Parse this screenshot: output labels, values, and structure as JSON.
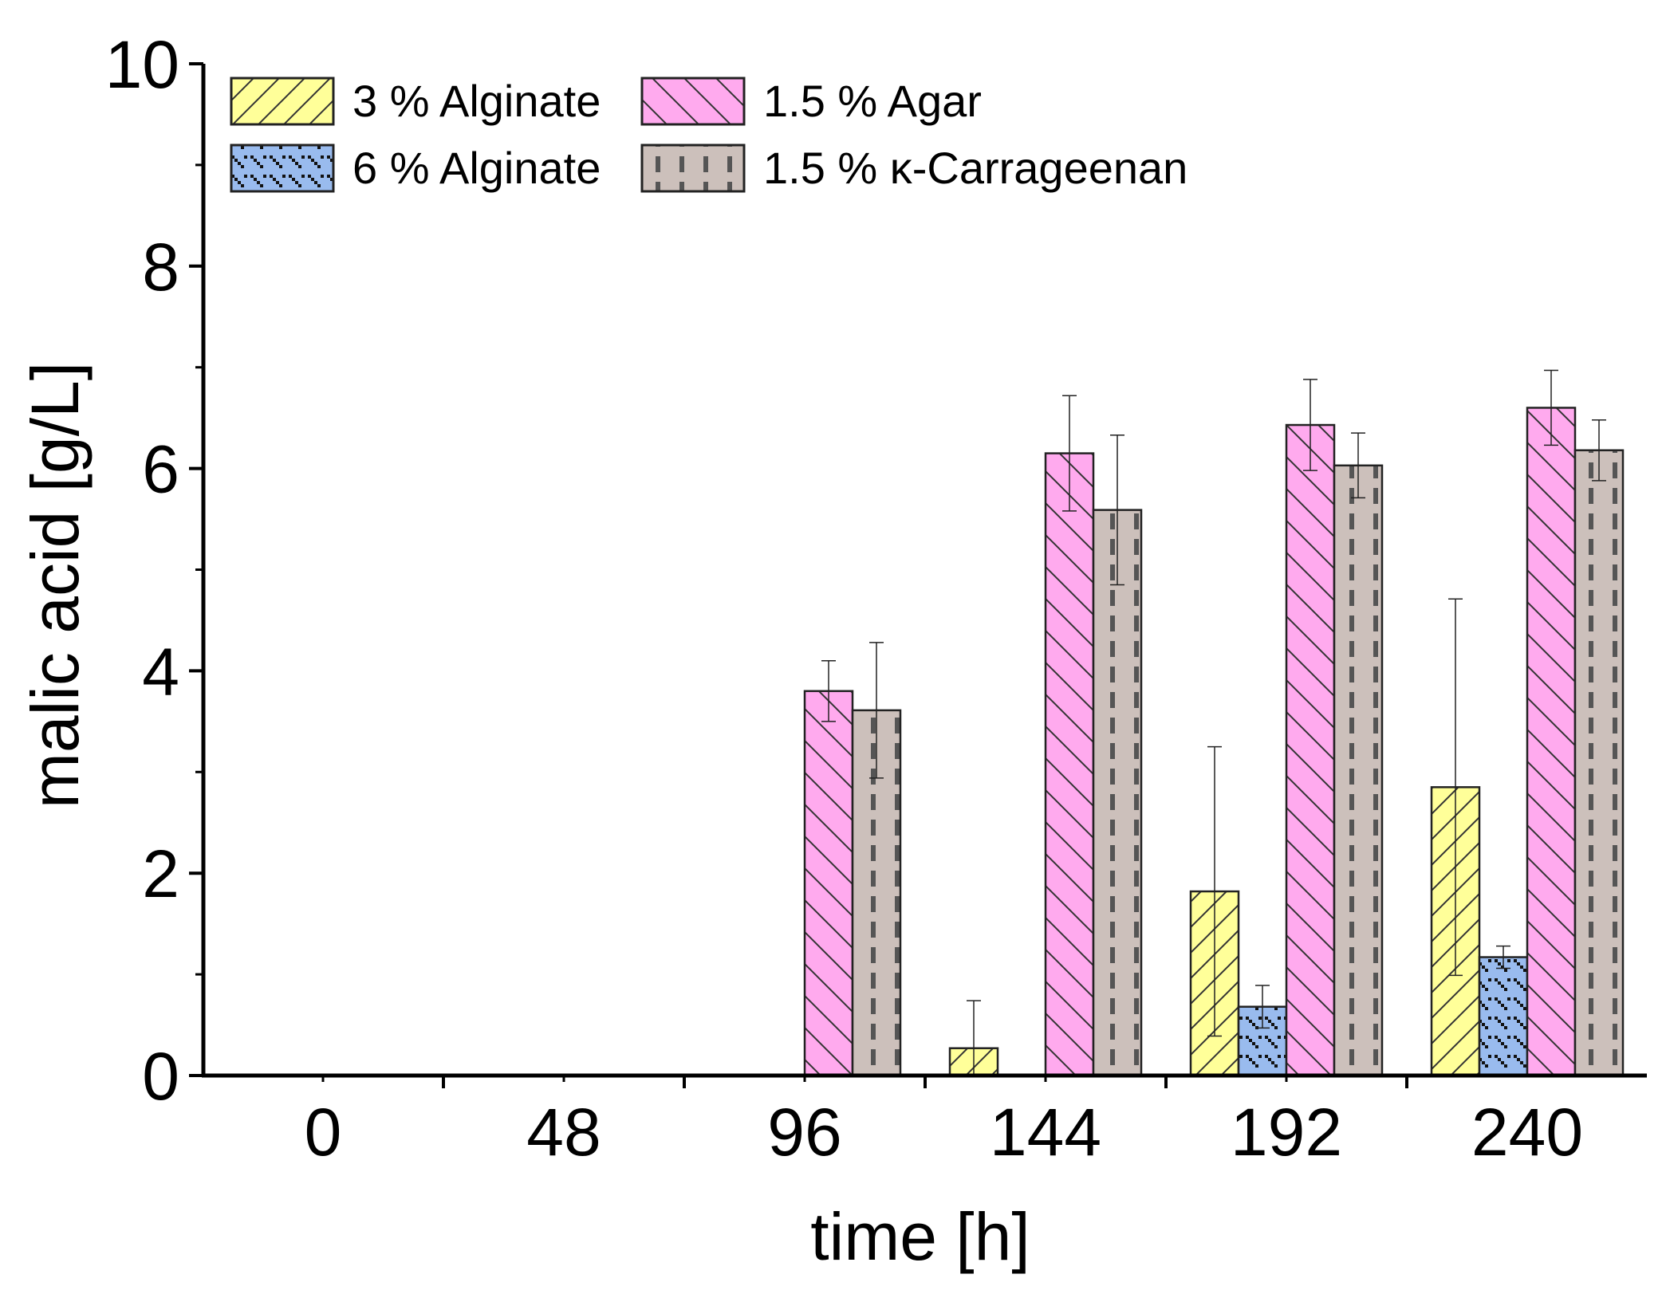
{
  "chart_data": {
    "type": "bar",
    "title": "",
    "xlabel": "time [h]",
    "ylabel": "malic acid [g/L]",
    "ylim": [
      0,
      10
    ],
    "yticks": [
      0,
      2,
      4,
      6,
      8,
      10
    ],
    "categories": [
      "0",
      "48",
      "96",
      "144",
      "192",
      "240"
    ],
    "legend_position": "top-left",
    "series": [
      {
        "name": "3 % Alginate",
        "color": "#ffff99",
        "pattern": "forward-diagonal",
        "values": [
          0,
          0,
          0,
          0.27,
          1.82,
          2.85
        ],
        "errors": [
          null,
          null,
          null,
          0.47,
          1.43,
          1.86
        ]
      },
      {
        "name": "6 % Alginate",
        "color": "#99bbee",
        "pattern": "wave",
        "values": [
          0,
          0,
          0,
          0,
          0.68,
          1.17
        ],
        "errors": [
          null,
          null,
          null,
          null,
          0.21,
          0.11
        ]
      },
      {
        "name": "1.5 % Agar",
        "color": "#ffaaee",
        "pattern": "back-diagonal",
        "values": [
          0,
          0,
          3.8,
          6.15,
          6.43,
          6.6
        ],
        "errors": [
          null,
          null,
          0.3,
          0.57,
          0.45,
          0.37
        ]
      },
      {
        "name": "1.5 % κ-Carrageenan",
        "color": "#ccc0bb",
        "pattern": "dashed-vertical",
        "values": [
          0,
          0,
          3.61,
          5.59,
          6.03,
          6.18
        ],
        "errors": [
          null,
          null,
          0.67,
          0.74,
          0.32,
          0.3
        ]
      }
    ]
  }
}
